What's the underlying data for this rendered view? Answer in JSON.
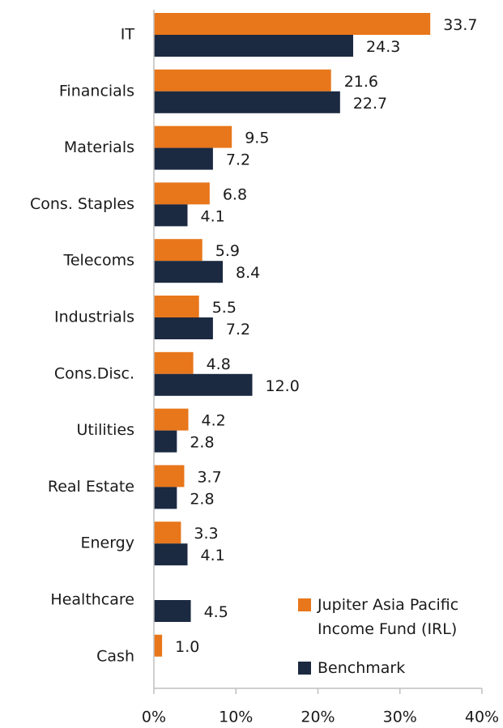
{
  "chart_data": {
    "type": "bar",
    "orientation": "horizontal",
    "categories": [
      "IT",
      "Financials",
      "Materials",
      "Cons. Staples",
      "Telecoms",
      "Industrials",
      "Cons.Disc.",
      "Utilities",
      "Real Estate",
      "Energy",
      "Healthcare",
      "Cash"
    ],
    "series": [
      {
        "name": "Jupiter Asia Pacific Income Fund (IRL)",
        "color": "#e8761a",
        "values": [
          33.7,
          21.6,
          9.5,
          6.8,
          5.9,
          5.5,
          4.8,
          4.2,
          3.7,
          3.3,
          null,
          1.0
        ],
        "value_labels": [
          "33.7",
          "21.6",
          "9.5",
          "6.8",
          "5.9",
          "5.5",
          "4.8",
          "4.2",
          "3.7",
          "3.3",
          null,
          "1.0"
        ]
      },
      {
        "name": "Benchmark",
        "color": "#1b2a41",
        "values": [
          24.3,
          22.7,
          7.2,
          4.1,
          8.4,
          7.2,
          12.0,
          2.8,
          2.8,
          4.1,
          4.5,
          null
        ],
        "value_labels": [
          "24.3",
          "22.7",
          "7.2",
          "4.1",
          "8.4",
          "7.2",
          "12.0",
          "2.8",
          "2.8",
          "4.1",
          "4.5",
          null
        ]
      }
    ],
    "xlim": [
      0,
      40
    ],
    "xticks": [
      {
        "value": 0,
        "label": "0%"
      },
      {
        "value": 10,
        "label": "10%"
      },
      {
        "value": 20,
        "label": "20%"
      },
      {
        "value": 30,
        "label": "30%"
      },
      {
        "value": 40,
        "label": "40%"
      }
    ],
    "legend": "lower right"
  }
}
